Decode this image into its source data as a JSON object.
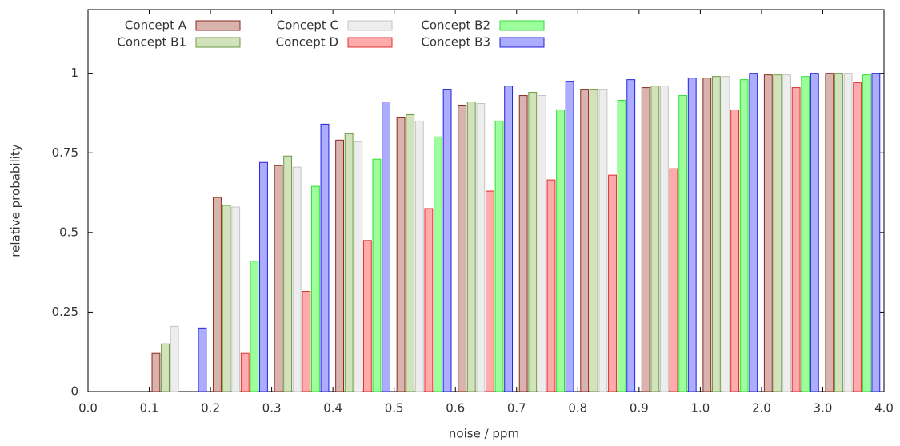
{
  "chart_data": {
    "type": "bar",
    "x_label": "noise / ppm",
    "y_label": "relative probability",
    "categories": [
      null,
      null,
      null,
      null,
      null,
      null,
      null,
      null,
      null,
      null,
      null,
      null,
      null
    ],
    "xtick_labels": [
      "0.0",
      "0.1",
      "0.2",
      "0.3",
      "0.4",
      "0.5",
      "0.6",
      "0.7",
      "0.8",
      "0.9",
      "1.0",
      "2.0",
      "3.0",
      "4.0"
    ],
    "ylim": [
      0,
      1.2
    ],
    "yticks": [
      0,
      0.25,
      0.5,
      0.75,
      1
    ],
    "legend": "top-left",
    "series": [
      {
        "name": "Concept A",
        "color": "#d9b3ad",
        "edgecolor": "#8b2a1e",
        "values": [
          0,
          0.12,
          0.61,
          0.71,
          0.79,
          0.86,
          0.9,
          0.93,
          0.95,
          0.955,
          0.985,
          0.995,
          1.0
        ]
      },
      {
        "name": "Concept B1",
        "color": "#d2e2bd",
        "edgecolor": "#6a9a40",
        "values": [
          0,
          0.15,
          0.585,
          0.74,
          0.81,
          0.87,
          0.91,
          0.94,
          0.95,
          0.96,
          0.99,
          0.995,
          1.0
        ]
      },
      {
        "name": "Concept C",
        "color": "#ededed",
        "edgecolor": "#c4c4c4",
        "values": [
          0,
          0.205,
          0.58,
          0.705,
          0.785,
          0.85,
          0.905,
          0.93,
          0.95,
          0.96,
          0.99,
          0.995,
          1.0
        ]
      },
      {
        "name": "Concept D",
        "color": "#ffabab",
        "edgecolor": "#e03030",
        "values": [
          0,
          0,
          0.12,
          0.315,
          0.475,
          0.575,
          0.63,
          0.665,
          0.68,
          0.7,
          0.885,
          0.955,
          0.97
        ]
      },
      {
        "name": "Concept B2",
        "color": "#9cff9c",
        "edgecolor": "#33dd33",
        "values": [
          0,
          0,
          0.41,
          0.645,
          0.73,
          0.8,
          0.85,
          0.885,
          0.915,
          0.93,
          0.98,
          0.99,
          0.995
        ]
      },
      {
        "name": "Concept B3",
        "color": "#adadff",
        "edgecolor": "#2222dd",
        "values": [
          0,
          0.2,
          0.72,
          0.84,
          0.91,
          0.95,
          0.96,
          0.975,
          0.98,
          0.985,
          1.0,
          1.0,
          1.0
        ]
      }
    ]
  }
}
